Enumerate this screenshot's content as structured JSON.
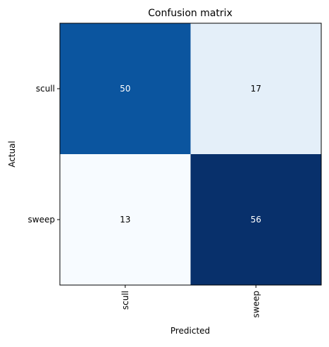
{
  "chart_data": {
    "type": "heatmap",
    "title": "Confusion matrix",
    "xlabel": "Predicted",
    "ylabel": "Actual",
    "x_categories": [
      "scull",
      "sweep"
    ],
    "y_categories": [
      "scull",
      "sweep"
    ],
    "values": [
      [
        50,
        17
      ],
      [
        13,
        56
      ]
    ],
    "colormap": "Blues",
    "grid": false,
    "legend": "none"
  },
  "colors": {
    "dark_text": "#ffffff",
    "light_text": "#000000",
    "axis": "#000000"
  }
}
